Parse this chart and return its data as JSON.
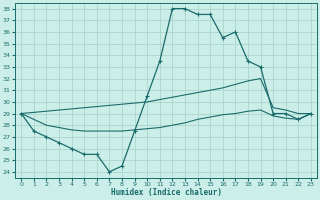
{
  "xlabel": "Humidex (Indice chaleur)",
  "background_color": "#cceee8",
  "grid_color": "#aad4cc",
  "line_color": "#1a6b6b",
  "xlim": [
    -0.5,
    23.5
  ],
  "ylim": [
    23.5,
    38.5
  ],
  "yticks": [
    24,
    25,
    26,
    27,
    28,
    29,
    30,
    31,
    32,
    33,
    34,
    35,
    36,
    37,
    38
  ],
  "xticks": [
    0,
    1,
    2,
    3,
    4,
    5,
    6,
    7,
    8,
    9,
    10,
    11,
    12,
    13,
    14,
    15,
    16,
    17,
    18,
    19,
    20,
    21,
    22,
    23
  ],
  "curve_x": [
    0,
    1,
    2,
    3,
    4,
    5,
    6,
    7,
    8,
    9,
    10,
    11,
    12,
    13,
    14,
    15,
    16,
    17,
    18,
    19,
    20,
    21,
    22,
    23
  ],
  "curve_main": [
    29.0,
    27.5,
    27.0,
    26.5,
    26.0,
    25.5,
    25.5,
    24.0,
    24.5,
    27.5,
    30.5,
    33.5,
    38.0,
    38.0,
    37.5,
    37.5,
    35.5,
    36.0,
    33.5,
    33.0,
    29.0,
    29.0,
    28.5,
    29.0
  ],
  "curve_upper": [
    29.0,
    29.1,
    29.2,
    29.3,
    29.4,
    29.5,
    29.6,
    29.7,
    29.8,
    29.9,
    30.0,
    30.2,
    30.4,
    30.6,
    30.8,
    31.0,
    31.2,
    31.5,
    31.8,
    32.0,
    29.5,
    29.3,
    29.0,
    29.0
  ],
  "curve_lower": [
    29.0,
    28.5,
    28.0,
    27.8,
    27.6,
    27.5,
    27.5,
    27.5,
    27.5,
    27.6,
    27.7,
    27.8,
    28.0,
    28.2,
    28.5,
    28.7,
    28.9,
    29.0,
    29.2,
    29.3,
    28.8,
    28.6,
    28.5,
    29.0
  ]
}
